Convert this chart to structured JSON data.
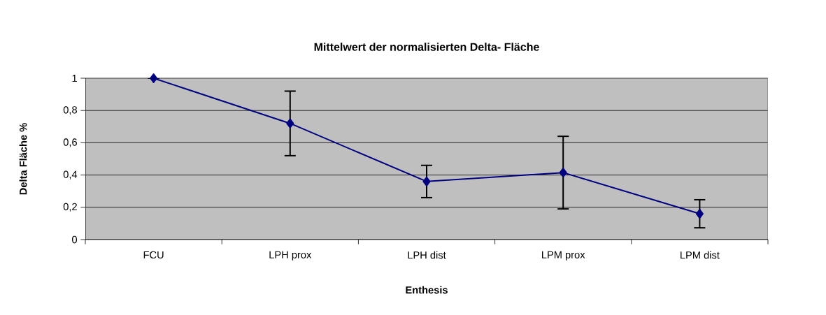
{
  "chart_data": {
    "type": "line",
    "title": "Mittelwert der normalisierten Delta- Fläche",
    "xlabel": "Enthesis",
    "ylabel": "Delta Fläche %",
    "categories": [
      "FCU",
      "LPH prox",
      "LPH dist",
      "LPM prox",
      "LPM dist"
    ],
    "values": [
      1,
      0.72,
      0.36,
      0.415,
      0.16
    ],
    "errors": [
      null,
      0.2,
      0.1,
      0.225,
      0.087
    ],
    "color": "#000080",
    "marker": "diamond",
    "line_style": "solid",
    "grid": "y",
    "ylim": [
      0,
      1
    ],
    "yticks": [
      0,
      {
        "value": 0.2,
        "label": "0,2"
      },
      {
        "value": 0.4,
        "label": "0,4"
      },
      {
        "value": 0.6,
        "label": "0,6"
      },
      {
        "value": 0.8,
        "label": "0,8"
      },
      1
    ]
  }
}
